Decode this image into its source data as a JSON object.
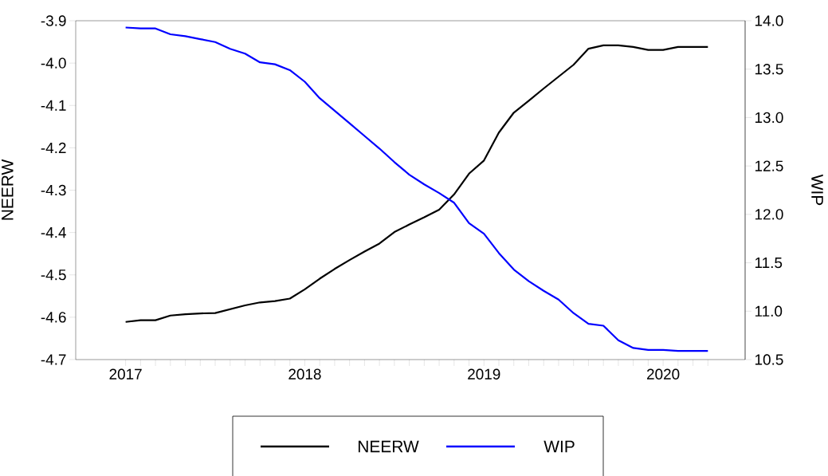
{
  "chart_data": {
    "type": "line",
    "x": [
      "2017-01",
      "2017-02",
      "2017-03",
      "2017-04",
      "2017-05",
      "2017-06",
      "2017-07",
      "2017-08",
      "2017-09",
      "2017-10",
      "2017-11",
      "2017-12",
      "2018-01",
      "2018-02",
      "2018-03",
      "2018-04",
      "2018-05",
      "2018-06",
      "2018-07",
      "2018-08",
      "2018-09",
      "2018-10",
      "2018-11",
      "2018-12",
      "2019-01",
      "2019-02",
      "2019-03",
      "2019-04",
      "2019-05",
      "2019-06",
      "2019-07",
      "2019-08",
      "2019-09",
      "2019-10",
      "2019-11",
      "2019-12",
      "2020-01",
      "2020-02",
      "2020-03",
      "2020-04"
    ],
    "series": [
      {
        "name": "NEERW",
        "color": "#000000",
        "values": [
          -4.611,
          -4.607,
          -4.607,
          -4.596,
          -4.593,
          -4.591,
          -4.59,
          -4.581,
          -4.572,
          -4.565,
          -4.562,
          -4.556,
          -4.534,
          -4.509,
          -4.486,
          -4.465,
          -4.445,
          -4.426,
          -4.399,
          -4.381,
          -4.364,
          -4.346,
          -4.31,
          -4.261,
          -4.23,
          -4.164,
          -4.117,
          -4.089,
          -4.06,
          -4.032,
          -4.004,
          -3.966,
          -3.958,
          -3.958,
          -3.962,
          -3.969,
          -3.969,
          -3.962,
          -3.962,
          -3.962
        ]
      },
      {
        "name": "WIP",
        "color": "#0000ff",
        "axis": "y2",
        "values": [
          13.93,
          13.92,
          13.92,
          13.86,
          13.84,
          13.81,
          13.78,
          13.71,
          13.66,
          13.57,
          13.55,
          13.49,
          13.37,
          13.2,
          13.07,
          12.94,
          12.81,
          12.68,
          12.54,
          12.41,
          12.31,
          12.22,
          12.12,
          11.91,
          11.8,
          11.6,
          11.43,
          11.31,
          11.21,
          11.12,
          10.98,
          10.87,
          10.85,
          10.7,
          10.62,
          10.6,
          10.6,
          10.59,
          10.59,
          10.59
        ]
      }
    ],
    "ylabel": "NEERW",
    "y2label": "WIP",
    "xlim": [
      "2016-09-21",
      "2020-06-16"
    ],
    "xticks": [
      {
        "value": "2017-01",
        "label": "2017"
      },
      {
        "value": "2017-02",
        "label": null
      },
      {
        "value": "2017-03",
        "label": null
      },
      {
        "value": "2017-04",
        "label": null
      },
      {
        "value": "2017-05",
        "label": null
      },
      {
        "value": "2017-06",
        "label": null
      },
      {
        "value": "2017-07",
        "label": null
      },
      {
        "value": "2017-08",
        "label": null
      },
      {
        "value": "2017-09",
        "label": null
      },
      {
        "value": "2017-10",
        "label": null
      },
      {
        "value": "2017-11",
        "label": null
      },
      {
        "value": "2017-12",
        "label": null
      },
      {
        "value": "2018-01",
        "label": "2018"
      },
      {
        "value": "2018-02",
        "label": null
      },
      {
        "value": "2018-03",
        "label": null
      },
      {
        "value": "2018-04",
        "label": null
      },
      {
        "value": "2018-05",
        "label": null
      },
      {
        "value": "2018-06",
        "label": null
      },
      {
        "value": "2018-07",
        "label": null
      },
      {
        "value": "2018-08",
        "label": null
      },
      {
        "value": "2018-09",
        "label": null
      },
      {
        "value": "2018-10",
        "label": null
      },
      {
        "value": "2018-11",
        "label": null
      },
      {
        "value": "2018-12",
        "label": null
      },
      {
        "value": "2019-01",
        "label": "2019"
      },
      {
        "value": "2019-02",
        "label": null
      },
      {
        "value": "2019-03",
        "label": null
      },
      {
        "value": "2019-04",
        "label": null
      },
      {
        "value": "2019-05",
        "label": null
      },
      {
        "value": "2019-06",
        "label": null
      },
      {
        "value": "2019-07",
        "label": null
      },
      {
        "value": "2019-08",
        "label": null
      },
      {
        "value": "2019-09",
        "label": null
      },
      {
        "value": "2019-10",
        "label": null
      },
      {
        "value": "2019-11",
        "label": null
      },
      {
        "value": "2019-12",
        "label": null
      },
      {
        "value": "2020-01",
        "label": "2020"
      },
      {
        "value": "2020-02",
        "label": null
      },
      {
        "value": "2020-03",
        "label": null
      },
      {
        "value": "2020-04",
        "label": null
      }
    ],
    "ylim": [
      -4.7,
      -3.9
    ],
    "yticks": [
      {
        "value": -4.7,
        "label": "-4.7"
      },
      {
        "value": -4.6,
        "label": "-4.6"
      },
      {
        "value": -4.5,
        "label": "-4.5"
      },
      {
        "value": -4.4,
        "label": "-4.4"
      },
      {
        "value": -4.3,
        "label": "-4.3"
      },
      {
        "value": -4.2,
        "label": "-4.2"
      },
      {
        "value": -4.1,
        "label": "-4.1"
      },
      {
        "value": -4.0,
        "label": "-4.0"
      },
      {
        "value": -3.9,
        "label": "-3.9"
      }
    ],
    "y2lim": [
      10.5,
      14.0
    ],
    "y2ticks": [
      {
        "value": 10.5,
        "label": "10.5"
      },
      {
        "value": 11.0,
        "label": "11.0"
      },
      {
        "value": 11.5,
        "label": "11.5"
      },
      {
        "value": 12.0,
        "label": "12.0"
      },
      {
        "value": 12.5,
        "label": "12.5"
      },
      {
        "value": 13.0,
        "label": "13.0"
      },
      {
        "value": 13.5,
        "label": "13.5"
      },
      {
        "value": 14.0,
        "label": "14.0"
      }
    ],
    "legend": "bottom",
    "grid": false
  }
}
